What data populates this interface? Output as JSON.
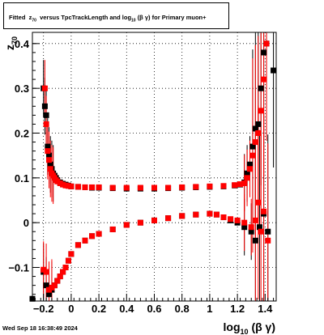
{
  "title": {
    "prefix": "Fitted",
    "z_sym": "z",
    "z_sub": "70",
    "middle": "versus TpcTrackLength and log",
    "log_sub": "10",
    "beta_gamma": "(β γ)",
    "suffix": "for Primary muon+"
  },
  "timestamp": "Wed Sep 18 16:38:49 2024",
  "chart_data": {
    "type": "scatter",
    "title": "Fitted z70 versus TpcTrackLength and log10 (β γ) for Primary muon+",
    "xlabel": "log10 (β γ)",
    "ylabel": "z70",
    "xlim": [
      -0.28,
      1.48
    ],
    "ylim": [
      -0.175,
      0.425
    ],
    "x_ticks": [
      -0.2,
      0,
      0.2,
      0.4,
      0.6,
      0.8,
      1,
      1.2,
      1.4
    ],
    "x_tick_labels": [
      "−0.2",
      "0",
      "0.2",
      "0.4",
      "0.6",
      "0.8",
      "1",
      "1.2",
      "1.4"
    ],
    "y_ticks": [
      -0.1,
      0,
      0.1,
      0.2,
      0.3,
      0.4
    ],
    "y_tick_labels": [
      "−0.1",
      "0",
      "0.1",
      "0.2",
      "0.3",
      "0.4"
    ],
    "grid": true,
    "colors": {
      "black_series": "#000000",
      "red_series": "#ff0000"
    },
    "series": [
      {
        "marker": "square",
        "color": "#000000",
        "x": [
          -0.2,
          -0.19,
          -0.18,
          -0.17,
          -0.16,
          -0.15,
          -0.14,
          -0.13,
          -0.12,
          -0.11,
          -0.1,
          -0.08,
          -0.06,
          -0.04,
          -0.02,
          0.0,
          0.05,
          0.1,
          0.15,
          0.2,
          0.3,
          0.4,
          0.5,
          0.6,
          0.7,
          0.8,
          0.9,
          1.0,
          1.1,
          1.18,
          1.22,
          1.25,
          1.27,
          1.29,
          1.31,
          1.33,
          1.35,
          1.37,
          1.39,
          1.41
        ],
        "y": [
          0.3,
          0.26,
          0.24,
          0.17,
          0.15,
          0.13,
          0.12,
          0.11,
          0.105,
          0.1,
          0.095,
          0.09,
          0.087,
          0.085,
          0.083,
          0.081,
          0.08,
          0.079,
          0.078,
          0.078,
          0.077,
          0.076,
          0.076,
          0.076,
          0.077,
          0.078,
          0.079,
          0.08,
          0.081,
          0.083,
          0.085,
          0.09,
          0.11,
          0.13,
          0.17,
          0.21,
          0.22,
          0.3,
          0.38,
          0.4
        ],
        "x2": [
          -0.28,
          -0.2,
          -0.18,
          -0.16,
          -0.14,
          -0.12,
          -0.1,
          -0.08,
          -0.06,
          -0.04,
          -0.02,
          0.0,
          0.05,
          0.1,
          0.15,
          0.2,
          0.3,
          0.4,
          0.5,
          0.6,
          0.7,
          0.8,
          0.9,
          1.0,
          1.05,
          1.1,
          1.15,
          1.2,
          1.25,
          1.3,
          1.33,
          1.36,
          1.39,
          1.42,
          1.46
        ],
        "y2": [
          -0.17,
          -0.11,
          -0.14,
          -0.16,
          -0.15,
          -0.14,
          -0.13,
          -0.12,
          -0.11,
          -0.1,
          -0.085,
          -0.07,
          -0.05,
          -0.04,
          -0.03,
          -0.025,
          -0.015,
          -0.005,
          0.0,
          0.005,
          0.01,
          0.015,
          0.018,
          0.02,
          0.018,
          0.012,
          0.005,
          0.0,
          -0.01,
          -0.02,
          -0.04,
          -0.01,
          0.02,
          -0.02,
          0.34
        ]
      },
      {
        "marker": "square",
        "color": "#ff0000",
        "x": [
          -0.19,
          -0.18,
          -0.17,
          -0.16,
          -0.15,
          -0.14,
          -0.13,
          -0.12,
          -0.11,
          -0.1,
          -0.08,
          -0.06,
          -0.04,
          -0.02,
          0.0,
          0.05,
          0.1,
          0.15,
          0.2,
          0.3,
          0.4,
          0.5,
          0.6,
          0.7,
          0.8,
          0.9,
          1.0,
          1.1,
          1.18,
          1.22,
          1.25,
          1.27,
          1.29,
          1.31,
          1.33,
          1.35,
          1.37,
          1.39,
          1.41
        ],
        "y": [
          0.3,
          0.22,
          0.16,
          0.14,
          0.12,
          0.11,
          0.105,
          0.1,
          0.095,
          0.092,
          0.088,
          0.085,
          0.083,
          0.082,
          0.081,
          0.08,
          0.079,
          0.079,
          0.079,
          0.078,
          0.078,
          0.078,
          0.078,
          0.078,
          0.079,
          0.08,
          0.081,
          0.082,
          0.084,
          0.086,
          0.088,
          0.1,
          0.12,
          0.15,
          0.18,
          0.2,
          0.25,
          0.32,
          0.4
        ],
        "x2": [
          -0.2,
          -0.18,
          -0.16,
          -0.14,
          -0.12,
          -0.1,
          -0.08,
          -0.06,
          -0.04,
          -0.02,
          0.0,
          0.05,
          0.1,
          0.15,
          0.2,
          0.3,
          0.4,
          0.5,
          0.6,
          0.7,
          0.8,
          0.9,
          1.0,
          1.05,
          1.1,
          1.15,
          1.2,
          1.25,
          1.3,
          1.33,
          1.35,
          1.37,
          1.39,
          1.42
        ],
        "y2": [
          -0.105,
          -0.11,
          -0.15,
          -0.145,
          -0.14,
          -0.13,
          -0.12,
          -0.11,
          -0.1,
          -0.085,
          -0.07,
          -0.05,
          -0.04,
          -0.03,
          -0.025,
          -0.015,
          -0.005,
          0.0,
          0.005,
          0.01,
          0.015,
          0.018,
          0.02,
          0.018,
          0.012,
          0.008,
          0.005,
          0.0,
          -0.01,
          0.005,
          0.045,
          -0.02,
          0.025,
          -0.04
        ]
      }
    ]
  }
}
